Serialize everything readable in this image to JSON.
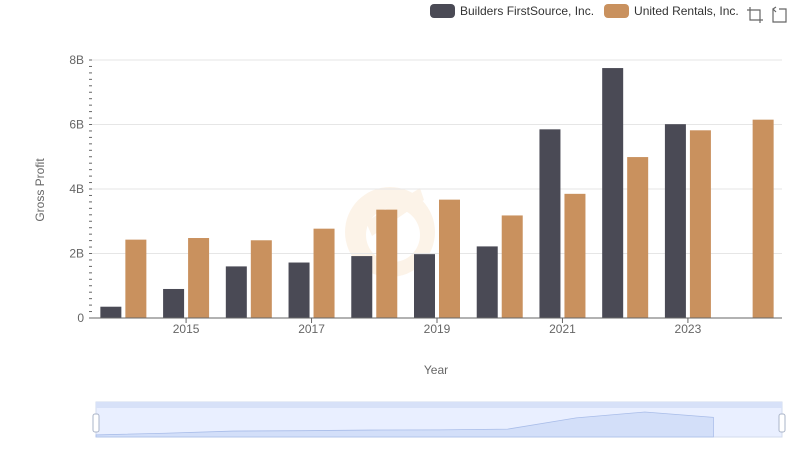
{
  "chart_data": {
    "type": "bar",
    "xlabel": "Year",
    "ylabel": "Gross Profit",
    "categories": [
      "2014",
      "2015",
      "2016",
      "2017",
      "2018",
      "2019",
      "2020",
      "2021",
      "2022",
      "2023",
      "2024"
    ],
    "x_tick_labels": [
      "2015",
      "2017",
      "2019",
      "2021",
      "2023"
    ],
    "y_tick_labels": [
      "0",
      "2B",
      "4B",
      "6B",
      "8B"
    ],
    "ylim": [
      0,
      8000000000
    ],
    "series": [
      {
        "name": "Builders FirstSource, Inc.",
        "color": "#4a4a55",
        "values": [
          350000000,
          900000000,
          1600000000,
          1720000000,
          1920000000,
          1980000000,
          2220000000,
          5850000000,
          7750000000,
          6010000000,
          null
        ]
      },
      {
        "name": "United Rentals, Inc.",
        "color": "#c9915e",
        "values": [
          2430000000,
          2480000000,
          2410000000,
          2770000000,
          3360000000,
          3670000000,
          3180000000,
          3850000000,
          4990000000,
          5820000000,
          6150000000
        ]
      }
    ],
    "legend_position": "top-right",
    "grid": true
  },
  "toolbox": {
    "icons": [
      "zoom-icon",
      "restore-icon"
    ]
  }
}
